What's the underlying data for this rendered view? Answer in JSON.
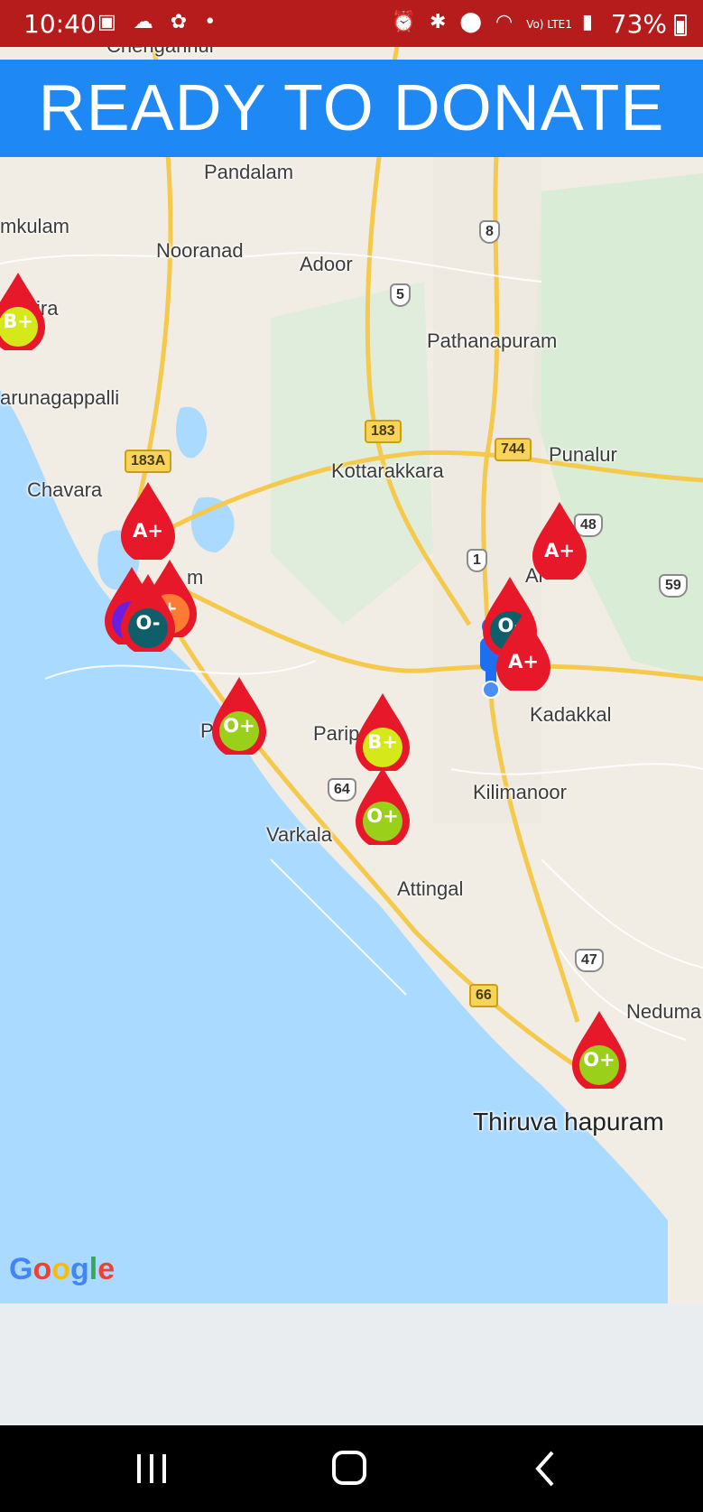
{
  "status_bar": {
    "time": "10:40",
    "battery": "73%",
    "network": "Vo) LTE1"
  },
  "header": {
    "title": "READY TO DONATE"
  },
  "map": {
    "places": {
      "chengannur": "Chengannur",
      "pandalam": "Pandalam",
      "kayamkulam": "mkulam",
      "nooranad": "Nooranad",
      "adoor": "Adoor",
      "sasthamkotta": "ira",
      "pathanapuram": "Pathanapuram",
      "karunagappalli": "arunagappalli",
      "punalur": "Punalur",
      "kottarakkara": "Kottarakkara",
      "chavara": "Chavara",
      "kollam": "m",
      "anchal": "Al",
      "kadakkal": "Kadakkal",
      "paravur": "P        r",
      "parippally": "Parip",
      "kilimanoor": "Kilimanoor",
      "varkala": "Varkala",
      "attingal": "Attingal",
      "nedumangad": "Neduma",
      "thiruvananthapuram": "Thiruva          hapuram"
    },
    "shields": {
      "sh8": "8",
      "sh5": "5",
      "nh183": "183",
      "nh183a": "183A",
      "nh744": "744",
      "sh48": "48",
      "sh1": "1",
      "sh59": "59",
      "sh64": "64",
      "sh47": "47",
      "nh66": "66"
    },
    "markers": [
      {
        "label": "B+",
        "color": "#d4e81a"
      },
      {
        "label": "A+",
        "color": "#e8182b"
      },
      {
        "label": "+",
        "color": "#ff7b33"
      },
      {
        "label": "",
        "color": "#6a1fe0"
      },
      {
        "label": "O-",
        "color": "#0f5f6a"
      },
      {
        "label": "A+",
        "color": "#e8182b"
      },
      {
        "label": "O-",
        "color": "#0f5f6a"
      },
      {
        "label": "A+",
        "color": "#e8182b"
      },
      {
        "label": "O+",
        "color": "#9ad01a"
      },
      {
        "label": "B+",
        "color": "#d4e81a"
      },
      {
        "label": "O+",
        "color": "#9ad01a"
      },
      {
        "label": "O+",
        "color": "#9ad01a"
      }
    ],
    "attribution": [
      "G",
      "o",
      "o",
      "g",
      "l",
      "e"
    ]
  }
}
